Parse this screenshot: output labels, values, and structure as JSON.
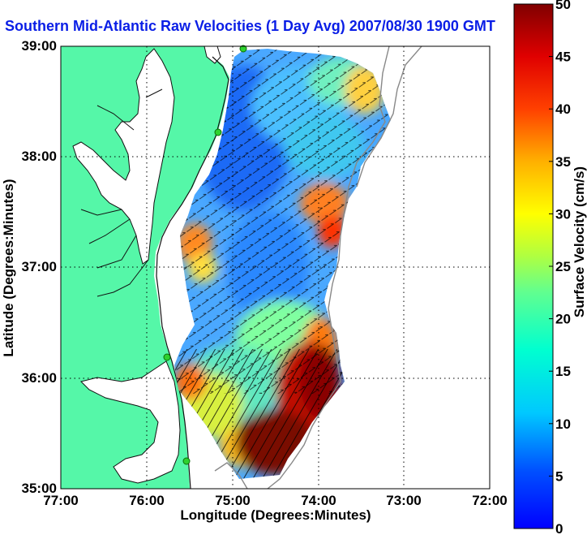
{
  "title": "Southern Mid-Atlantic Raw Velocities (1 Day Avg) 2007/08/30 1900 GMT",
  "axes": {
    "xlabel": "Longitude (Degrees:Minutes)",
    "ylabel": "Latitude (Degrees:Minutes)",
    "x_ticks": [
      "77:00",
      "76:00",
      "75:00",
      "74:00",
      "73:00",
      "72:00"
    ],
    "y_ticks": [
      "39:00",
      "38:00",
      "37:00",
      "36:00",
      "35:00"
    ]
  },
  "colorbar": {
    "label": "Surface Velocity (cm/s)",
    "ticks": [
      "0",
      "5",
      "10",
      "15",
      "20",
      "25",
      "30",
      "35",
      "40",
      "45",
      "50"
    ],
    "min": 0,
    "max": 50
  },
  "colors": {
    "land": "#55f7a8",
    "water": "#ffffff",
    "title": "#0a1ee6",
    "station": "#2ed12e"
  },
  "chart_data": {
    "type": "heatmap",
    "title": "Southern Mid-Atlantic Raw Velocities (1 Day Avg) 2007/08/30 1900 GMT",
    "xlabel": "Longitude (Degrees:Minutes)",
    "ylabel": "Latitude (Degrees:Minutes)",
    "xlim": [
      -77,
      -72
    ],
    "ylim": [
      35,
      39
    ],
    "colorbar_range": [
      0,
      50
    ],
    "colorbar_label": "Surface Velocity (cm/s)",
    "grid": true,
    "stations": [
      {
        "lon": -74.92,
        "lat": 39.0
      },
      {
        "lon": -75.15,
        "lat": 38.31
      },
      {
        "lon": -75.66,
        "lat": 36.19
      },
      {
        "lon": -75.52,
        "lat": 35.27
      }
    ]
  }
}
